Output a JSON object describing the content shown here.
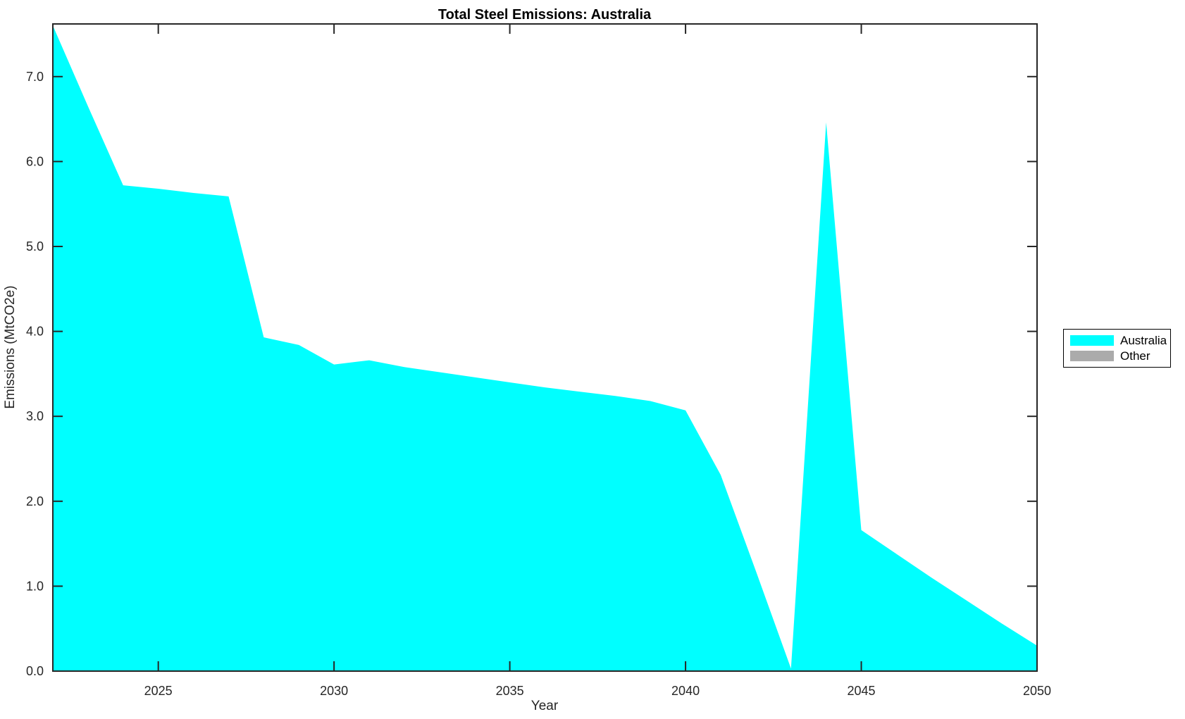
{
  "chart_data": {
    "type": "area",
    "title": "Total Steel Emissions: Australia",
    "xlabel": "Year",
    "ylabel": "Emissions (MtCO2e)",
    "x": [
      2022,
      2023,
      2024,
      2025,
      2026,
      2027,
      2028,
      2029,
      2030,
      2031,
      2032,
      2033,
      2034,
      2035,
      2036,
      2037,
      2038,
      2039,
      2040,
      2041,
      2042,
      2043,
      2044,
      2045,
      2046,
      2047,
      2048,
      2049,
      2050
    ],
    "series": [
      {
        "name": "Australia",
        "color": "#00ffff",
        "values": [
          7.6,
          6.65,
          5.72,
          5.68,
          5.63,
          5.59,
          3.93,
          3.84,
          3.61,
          3.66,
          3.58,
          3.52,
          3.46,
          3.4,
          3.34,
          3.29,
          3.24,
          3.18,
          3.07,
          2.31,
          1.18,
          0.03,
          6.46,
          1.66,
          1.38,
          1.1,
          0.83,
          0.56,
          0.3
        ]
      },
      {
        "name": "Other",
        "color": "#ababab",
        "values": [
          0,
          0,
          0,
          0,
          0,
          0,
          0,
          0,
          0,
          0,
          0,
          0,
          0,
          0,
          0,
          0,
          0,
          0,
          0,
          0,
          0,
          0,
          0,
          0,
          0,
          0,
          0,
          0,
          0
        ]
      }
    ],
    "xlim": [
      2022,
      2050
    ],
    "ylim": [
      0,
      7.62
    ],
    "x_ticks": [
      2025,
      2030,
      2035,
      2040,
      2045,
      2050
    ],
    "x_tick_labels": [
      "2025",
      "2030",
      "2035",
      "2040",
      "2045",
      "2050"
    ],
    "y_ticks": [
      0,
      1,
      2,
      3,
      4,
      5,
      6,
      7
    ],
    "y_tick_labels": [
      "0.0",
      "1.0",
      "2.0",
      "3.0",
      "4.0",
      "5.0",
      "6.0",
      "7.0"
    ],
    "grid": false,
    "legend": {
      "position": "right-outside",
      "entries": [
        {
          "label": "Australia",
          "color": "#00ffff"
        },
        {
          "label": "Other",
          "color": "#ababab"
        }
      ]
    }
  },
  "colors": {
    "background": "#ffffff",
    "axis": "#262626",
    "tick_text": "#262626",
    "title_text": "#000000"
  }
}
